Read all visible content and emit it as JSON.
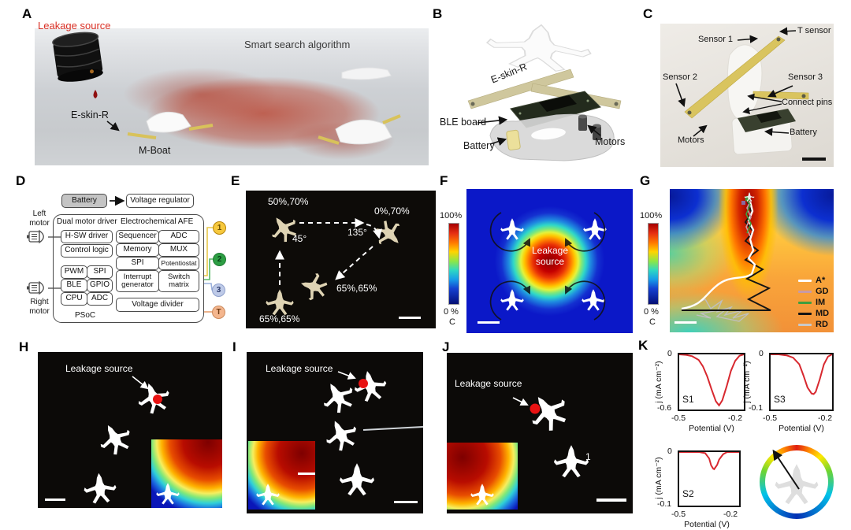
{
  "colors": {
    "curve_red": "#d8282f",
    "leak_red": "#e41414",
    "boat_beige": "#ded3b3",
    "eskin_yellow": "#d9c45f"
  },
  "panelA": {
    "label": "A",
    "leakage_source": "Leakage source",
    "smart_search": "Smart search algorithm",
    "eskin": "E-skin-R",
    "mboat": "M-Boat"
  },
  "panelB": {
    "label": "B",
    "eskin": "E-skin-R",
    "ble_board": "BLE board",
    "battery": "Battery",
    "motors": "Motors"
  },
  "panelC": {
    "label": "C",
    "t_sensor": "T sensor",
    "sensor1": "Sensor 1",
    "sensor2": "Sensor 2",
    "sensor3": "Sensor 3",
    "connect_pins": "Connect pins",
    "motors": "Motors",
    "battery": "Battery"
  },
  "panelD": {
    "label": "D",
    "battery": "Battery",
    "voltage_regulator": "Voltage regulator",
    "left_motor": "Left motor",
    "right_motor": "Right motor",
    "dual_motor_driver": "Dual motor driver",
    "electrochemical_afe": "Electrochemical AFE",
    "hsw_driver": "H-SW driver",
    "control_logic": "Control logic",
    "pwm": "PWM",
    "spi_a": "SPI",
    "ble": "BLE",
    "gpio": "GPIO",
    "cpu": "CPU",
    "adc_a": "ADC",
    "sequencer": "Sequencer",
    "adc_b": "ADC",
    "memory": "Memory",
    "mux": "MUX",
    "spi_b": "SPI",
    "potentiostat": "Potentiostat",
    "interrupt_generator": "Interrupt generator",
    "switch_matrix": "Switch matrix",
    "voltage_divider": "Voltage divider",
    "psoc": "PSoC",
    "ports": [
      {
        "label": "1",
        "style": "background:#f6c83d;border-color:#b8860b;color:#6b4e00"
      },
      {
        "label": "2",
        "style": "background:#2d9e44;border-color:#1e7b32;color:#063f14"
      },
      {
        "label": "3",
        "style": "background:#becae8;border-color:#8fa0cc;color:#2c3a6a"
      },
      {
        "label": "T",
        "style": "background:#f4b68e;border-color:#cc8a5c;color:#6e3a14"
      }
    ]
  },
  "panelE": {
    "label": "E",
    "pos_top_left": "50%,70%",
    "pos_top_right": "0%,70%",
    "angle_left": "45°",
    "angle_right": "135°",
    "pos_mid": "65%,65%",
    "pos_bottom": "65%,65%"
  },
  "panelF": {
    "label": "F",
    "cbar_max": "100%",
    "cbar_min": "0 %",
    "cbar_unit": "C",
    "leakage_source": "Leakage source"
  },
  "panelG": {
    "label": "G",
    "cbar_max": "100%",
    "cbar_min": "0 %",
    "cbar_unit": "C",
    "legend": [
      {
        "label": "A*",
        "style": "background:#ffffff"
      },
      {
        "label": "GD",
        "style": "background:#c79aa8"
      },
      {
        "label": "IM",
        "style": "background:#3f9e3f"
      },
      {
        "label": "MD",
        "style": "background:#141414"
      },
      {
        "label": "RD",
        "style": "background:#c9c9c9"
      }
    ]
  },
  "panelH": {
    "label": "H",
    "leakage_source": "Leakage source"
  },
  "panelI": {
    "label": "I",
    "leakage_source": "Leakage source"
  },
  "panelJ": {
    "label": "J",
    "leakage_source": "Leakage source",
    "boat_number": "1"
  },
  "panelK": {
    "label": "K"
  },
  "chart_data": [
    {
      "type": "line",
      "name": "S1",
      "xlabel": "Potential (V)",
      "ylabel": "j (mA cm⁻²)",
      "xlim": [
        -0.5,
        -0.2
      ],
      "ylim": [
        -0.6,
        0
      ],
      "xticks": [
        "-0.5",
        "-0.2"
      ],
      "yticks": [
        "0",
        "-0.6"
      ],
      "x": [
        -0.5,
        -0.47,
        -0.44,
        -0.41,
        -0.39,
        -0.37,
        -0.35,
        -0.33,
        -0.315,
        -0.3,
        -0.28,
        -0.26,
        -0.24,
        -0.22,
        -0.2
      ],
      "y": [
        0,
        -0.005,
        -0.02,
        -0.06,
        -0.13,
        -0.24,
        -0.38,
        -0.51,
        -0.555,
        -0.5,
        -0.35,
        -0.18,
        -0.07,
        -0.015,
        0
      ]
    },
    {
      "type": "line",
      "name": "S3",
      "xlabel": "Potential (V)",
      "ylabel": "j (mA cm⁻²)",
      "xlim": [
        -0.5,
        -0.2
      ],
      "ylim": [
        -0.1,
        0
      ],
      "xticks": [
        "-0.5",
        "-0.2"
      ],
      "yticks": [
        "0",
        "-0.1"
      ],
      "x": [
        -0.5,
        -0.46,
        -0.42,
        -0.39,
        -0.36,
        -0.34,
        -0.32,
        -0.3,
        -0.29,
        -0.28,
        -0.26,
        -0.24,
        -0.22,
        -0.2
      ],
      "y": [
        0,
        0,
        -0.002,
        -0.006,
        -0.018,
        -0.038,
        -0.06,
        -0.071,
        -0.072,
        -0.068,
        -0.045,
        -0.018,
        -0.004,
        0
      ]
    },
    {
      "type": "line",
      "name": "S2",
      "xlabel": "Potential (V)",
      "ylabel": "j (mA cm⁻²)",
      "xlim": [
        -0.5,
        -0.2
      ],
      "ylim": [
        -0.1,
        0
      ],
      "xticks": [
        "-0.5",
        "-0.2"
      ],
      "yticks": [
        "0",
        "-0.1"
      ],
      "x": [
        -0.5,
        -0.44,
        -0.4,
        -0.37,
        -0.35,
        -0.34,
        -0.33,
        -0.325,
        -0.31,
        -0.3,
        -0.28,
        -0.26,
        -0.2
      ],
      "y": [
        0,
        0,
        0,
        -0.002,
        -0.012,
        -0.025,
        -0.031,
        -0.032,
        -0.024,
        -0.014,
        -0.004,
        0,
        0
      ]
    }
  ]
}
